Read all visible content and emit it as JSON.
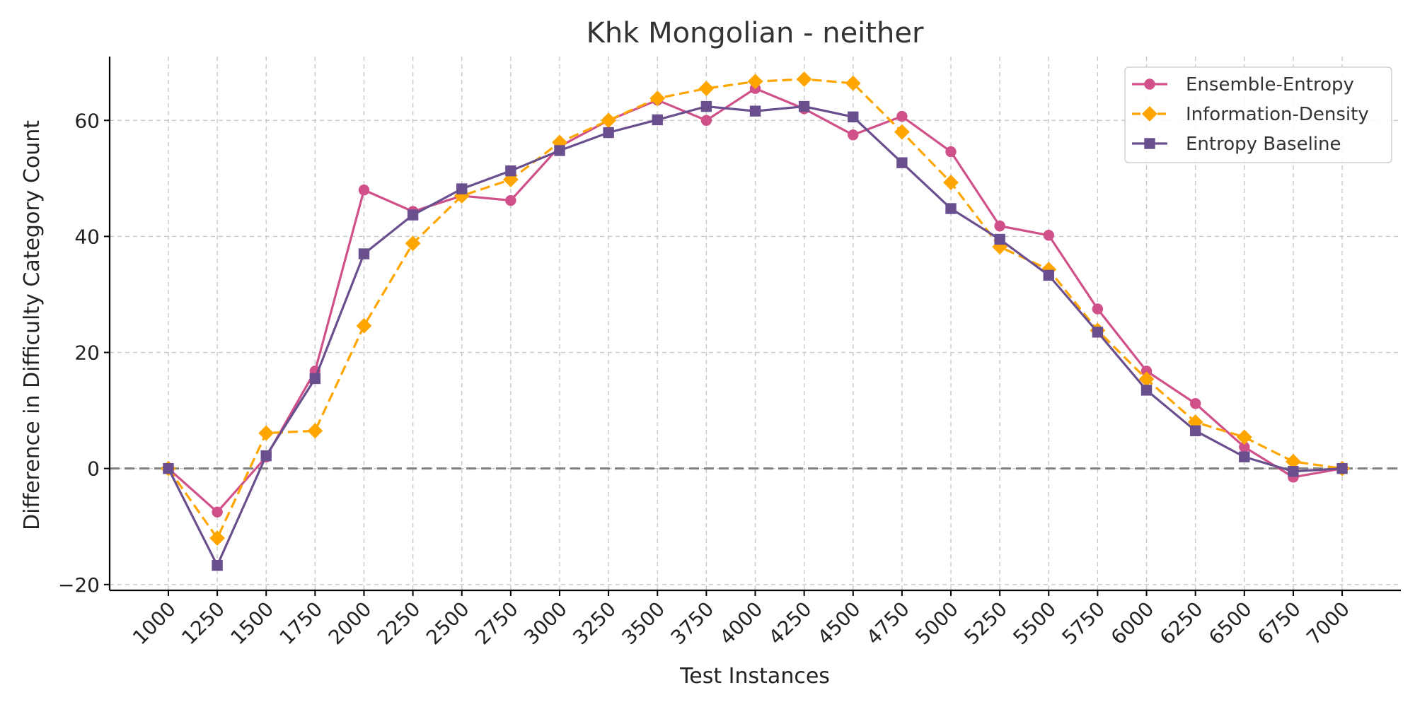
{
  "chart_data": {
    "type": "line",
    "title": "Khk Mongolian - neither",
    "xlabel": "Test Instances",
    "ylabel": "Difference in Difficulty Category Count",
    "x": [
      1000,
      1250,
      1500,
      1750,
      2000,
      2250,
      2500,
      2750,
      3000,
      3250,
      3500,
      3750,
      4000,
      4250,
      4500,
      4750,
      5000,
      5250,
      5500,
      5750,
      6000,
      6250,
      6500,
      6750,
      7000
    ],
    "x_tick_labels": [
      "1000",
      "1250",
      "1500",
      "1750",
      "2000",
      "2250",
      "2500",
      "2750",
      "3000",
      "3250",
      "3500",
      "3750",
      "4000",
      "4250",
      "4500",
      "4750",
      "5000",
      "5250",
      "5500",
      "5750",
      "6000",
      "6250",
      "6500",
      "6750",
      "7000"
    ],
    "xlim": [
      700,
      7300
    ],
    "ylim": [
      -21,
      71
    ],
    "y_ticks": [
      -20,
      0,
      20,
      40,
      60
    ],
    "y_tick_labels": [
      "−20",
      "0",
      "20",
      "40",
      "60"
    ],
    "reference_line": {
      "y": 0,
      "color": "#808080",
      "style": "dashed"
    },
    "grid": true,
    "legend_position": "top-right",
    "series": [
      {
        "name": "Ensemble-Entropy",
        "color": "#d0508a",
        "marker": "circle",
        "line_style": "solid",
        "values": [
          0,
          -7.5,
          2,
          16.8,
          48,
          44.3,
          47,
          46.2,
          55.5,
          60,
          63.5,
          60,
          65.5,
          62,
          57.5,
          60.7,
          54.6,
          41.8,
          40.2,
          27.5,
          16.8,
          11.2,
          3.7,
          -1.5,
          0
        ]
      },
      {
        "name": "Information-Density",
        "color": "#ffa500",
        "marker": "diamond",
        "line_style": "dashed",
        "values": [
          0,
          -12,
          6.1,
          6.5,
          24.6,
          38.8,
          47,
          49.8,
          56.2,
          60,
          63.8,
          65.5,
          66.7,
          67.1,
          66.4,
          58,
          49.3,
          38.2,
          34.3,
          23.8,
          15.4,
          8,
          5.4,
          1.2,
          0
        ]
      },
      {
        "name": "Entropy Baseline",
        "color": "#6a4f8f",
        "marker": "square",
        "line_style": "solid",
        "values": [
          0,
          -16.7,
          2.2,
          15.5,
          37,
          43.7,
          48.2,
          51.3,
          54.8,
          57.9,
          60.1,
          62.4,
          61.6,
          62.4,
          60.6,
          52.7,
          44.8,
          39.5,
          33.3,
          23.5,
          13.5,
          6.5,
          2,
          -0.5,
          0
        ]
      }
    ]
  }
}
